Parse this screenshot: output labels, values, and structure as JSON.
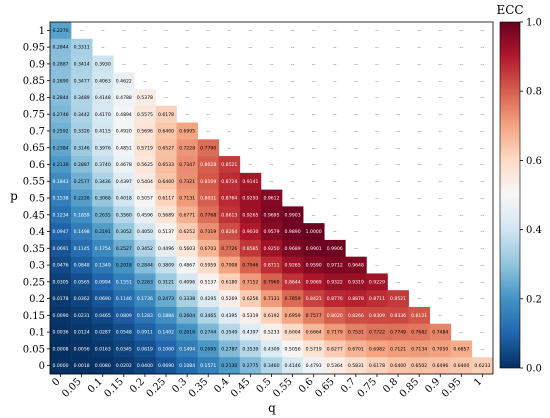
{
  "chart_data": {
    "type": "heatmap",
    "title": "",
    "xlabel": "q",
    "ylabel": "p",
    "colorbar": {
      "label": "ECC",
      "range": [
        0,
        1.0
      ],
      "ticks": [
        "0.0",
        "0.2",
        "0.4",
        "0.6",
        "0.8",
        "1.0"
      ],
      "colormap": [
        "#053061",
        "#2166ac",
        "#4393c3",
        "#92c5de",
        "#d1e5f0",
        "#f7f7f7",
        "#fddbc7",
        "#f4a582",
        "#d6604d",
        "#b2182b",
        "#67001f"
      ]
    },
    "x_ticks": [
      "0",
      "0.05",
      "0.1",
      "0.15",
      "0.2",
      "0.25",
      "0.3",
      "0.35",
      "0.4",
      "0.45",
      "0.5",
      "0.55",
      "0.6",
      "0.65",
      "0.7",
      "0.75",
      "0.8",
      "0.85",
      "0.9",
      "0.95",
      "1"
    ],
    "y_ticks": [
      "1",
      "0.95",
      "0.9",
      "0.85",
      "0.8",
      "0.75",
      "0.7",
      "0.65",
      "0.6",
      "0.55",
      "0.5",
      "0.45",
      "0.4",
      "0.35",
      "0.3",
      "0.25",
      "0.2",
      "0.15",
      "0.1",
      "0.05",
      "0"
    ],
    "empty_marker": "--",
    "rows": [
      [
        "0.2270"
      ],
      [
        "0.2844",
        "0.3311"
      ],
      [
        "0.2887",
        "0.3414",
        "0.3930"
      ],
      [
        "0.2890",
        "0.3477",
        "0.4063",
        "0.4622"
      ],
      [
        "0.2844",
        "0.3489",
        "0.4148",
        "0.4788",
        "0.5378"
      ],
      [
        "0.2746",
        "0.3442",
        "0.4170",
        "0.4894",
        "0.5575",
        "0.6178"
      ],
      [
        "0.2592",
        "0.3326",
        "0.4115",
        "0.4920",
        "0.5696",
        "0.6400",
        "0.6995"
      ],
      [
        "0.2384",
        "0.3146",
        "0.3976",
        "0.4851",
        "0.5719",
        "0.6527",
        "0.7228",
        "0.7790"
      ],
      [
        "0.2130",
        "0.2887",
        "0.3740",
        "0.4678",
        "0.5625",
        "0.6533",
        "0.7347",
        "0.8028",
        "0.8521"
      ],
      [
        "0.1843",
        "0.2577",
        "0.3436",
        "0.4397",
        "0.5404",
        "0.6400",
        "0.7321",
        "0.8109",
        "0.8724",
        "0.9141"
      ],
      [
        "0.1538",
        "0.2226",
        "0.3068",
        "0.4018",
        "0.5057",
        "0.6117",
        "0.7131",
        "0.8031",
        "0.8764",
        "0.9293",
        "0.9612"
      ],
      [
        "0.1234",
        "0.1859",
        "0.2635",
        "0.3560",
        "0.4596",
        "0.5689",
        "0.6771",
        "0.7768",
        "0.8613",
        "0.9265",
        "0.9695",
        "0.9903"
      ],
      [
        "0.0947",
        "0.1498",
        "0.2191",
        "0.3052",
        "0.4050",
        "0.5137",
        "0.6252",
        "0.7319",
        "0.8264",
        "0.9030",
        "0.9579",
        "0.9890",
        "1.0000"
      ],
      [
        "0.0691",
        "0.1145",
        "0.1754",
        "0.2527",
        "0.3452",
        "0.4496",
        "0.5603",
        "0.6703",
        "0.7726",
        "0.8585",
        "0.9250",
        "0.9689",
        "0.9901",
        "0.9906"
      ],
      [
        "0.0476",
        "0.0848",
        "0.1349",
        "0.2018",
        "0.2844",
        "0.3809",
        "0.4867",
        "0.5959",
        "0.7008",
        "0.7946",
        "0.8711",
        "0.9265",
        "0.9590",
        "0.9712",
        "0.9648"
      ],
      [
        "0.0305",
        "0.0565",
        "0.0994",
        "0.1551",
        "0.2263",
        "0.3121",
        "0.4096",
        "0.5137",
        "0.6180",
        "0.7152",
        "0.7969",
        "0.8644",
        "0.9069",
        "0.9322",
        "0.9319",
        "0.9229"
      ],
      [
        "0.0178",
        "0.0362",
        "0.0690",
        "0.1146",
        "0.1736",
        "0.2473",
        "0.3338",
        "0.4295",
        "0.5269",
        "0.6256",
        "0.7131",
        "0.7859",
        "0.8421",
        "0.8776",
        "0.8878",
        "0.8711",
        "0.8521"
      ],
      [
        "0.0090",
        "0.0231",
        "0.0465",
        "0.0809",
        "0.1283",
        "0.1884",
        "0.2604",
        "0.3465",
        "0.4395",
        "0.5319",
        "0.6192",
        "0.6959",
        "0.7577",
        "0.8020",
        "0.8266",
        "0.8309",
        "0.8336",
        "0.8121"
      ],
      [
        "0.0036",
        "0.0124",
        "0.0287",
        "0.0548",
        "0.0911",
        "0.1402",
        "0.2016",
        "0.2744",
        "0.3549",
        "0.4397",
        "0.5233",
        "0.6004",
        "0.6664",
        "0.7179",
        "0.7531",
        "0.7722",
        "0.7749",
        "0.7682",
        "0.7484"
      ],
      [
        "0.0008",
        "0.0056",
        "0.0163",
        "0.0345",
        "0.0619",
        "0.1000",
        "0.1494",
        "0.2095",
        "0.2787",
        "0.3539",
        "0.4309",
        "0.5056",
        "0.5719",
        "0.6277",
        "0.6701",
        "0.6982",
        "0.7121",
        "0.7134",
        "0.7050",
        "0.6857"
      ],
      [
        "0.0000",
        "0.0018",
        "0.0080",
        "0.0202",
        "0.0400",
        "0.0690",
        "0.1084",
        "0.1571",
        "0.2130",
        "0.2775",
        "0.3460",
        "0.4146",
        "0.4793",
        "0.5364",
        "0.5831",
        "0.6178",
        "0.6400",
        "0.6502",
        "0.6496",
        "0.6400",
        "0.6233"
      ]
    ]
  }
}
